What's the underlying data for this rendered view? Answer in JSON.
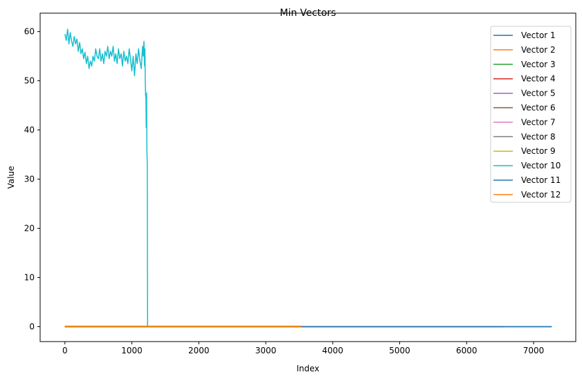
{
  "chart_data": {
    "type": "line",
    "title": "Min Vectors",
    "xlabel": "Index",
    "ylabel": "Value",
    "xlim": [
      -370,
      7630
    ],
    "ylim": [
      -3.03,
      63.75
    ],
    "xticks": [
      0,
      1000,
      2000,
      3000,
      4000,
      5000,
      6000,
      7000
    ],
    "yticks": [
      0,
      10,
      20,
      30,
      40,
      50,
      60
    ],
    "grid": false,
    "legend_position": "top-right",
    "series": [
      {
        "name": "Vector 1",
        "color": "#1f77b4",
        "x": [
          0,
          7270
        ],
        "y": [
          0.0,
          0.0
        ]
      },
      {
        "name": "Vector 2",
        "color": "#ff7f0e",
        "x": [
          0,
          3530
        ],
        "y": [
          0.1,
          0.1
        ]
      },
      {
        "name": "Vector 3",
        "color": "#2ca02c",
        "x": [
          0,
          3530
        ],
        "y": [
          0.05,
          0.05
        ]
      },
      {
        "name": "Vector 4",
        "color": "#d62728",
        "x": [
          0,
          3530
        ],
        "y": [
          0.05,
          0.05
        ]
      },
      {
        "name": "Vector 5",
        "color": "#9467bd",
        "x": [
          0,
          6550
        ],
        "y": [
          0.0,
          0.0
        ]
      },
      {
        "name": "Vector 6",
        "color": "#8c564b",
        "x": [
          0,
          6550
        ],
        "y": [
          0.0,
          0.0
        ]
      },
      {
        "name": "Vector 7",
        "color": "#e377c2",
        "x": [
          0,
          6550
        ],
        "y": [
          0.0,
          0.0
        ]
      },
      {
        "name": "Vector 8",
        "color": "#7f7f7f",
        "x": [
          0,
          6550
        ],
        "y": [
          0.0,
          0.0
        ]
      },
      {
        "name": "Vector 9",
        "color": "#bcbd22",
        "x": [
          0,
          3530
        ],
        "y": [
          0.05,
          0.05
        ]
      },
      {
        "name": "Vector 10",
        "color": "#17becf",
        "x": [
          0,
          20,
          40,
          60,
          80,
          100,
          120,
          140,
          160,
          180,
          200,
          220,
          240,
          260,
          280,
          300,
          320,
          340,
          360,
          380,
          400,
          420,
          440,
          460,
          480,
          500,
          520,
          540,
          560,
          580,
          600,
          620,
          640,
          660,
          680,
          700,
          720,
          740,
          760,
          780,
          800,
          820,
          840,
          860,
          880,
          900,
          920,
          940,
          960,
          980,
          1000,
          1020,
          1040,
          1060,
          1080,
          1100,
          1120,
          1140,
          1160,
          1170,
          1180,
          1190,
          1195,
          1200,
          1205,
          1210,
          1215,
          1220,
          1225,
          1230,
          1235
        ],
        "y": [
          59.5,
          58.2,
          60.5,
          57.5,
          59.8,
          58.0,
          57.0,
          59.0,
          57.5,
          58.5,
          56.0,
          57.8,
          55.5,
          56.5,
          54.5,
          55.8,
          53.5,
          55.0,
          52.5,
          54.0,
          53.0,
          55.0,
          54.0,
          56.5,
          55.0,
          54.5,
          56.5,
          54.0,
          55.5,
          53.5,
          56.0,
          55.0,
          57.0,
          54.5,
          56.0,
          55.0,
          57.0,
          54.0,
          55.5,
          53.5,
          56.5,
          54.5,
          55.5,
          53.0,
          56.0,
          54.0,
          55.0,
          53.5,
          56.5,
          54.5,
          52.0,
          55.0,
          51.0,
          55.5,
          53.5,
          56.5,
          54.0,
          52.5,
          57.0,
          55.0,
          58.0,
          53.0,
          56.5,
          50.0,
          47.0,
          46.5,
          40.5,
          47.5,
          36.0,
          33.0,
          0.0
        ]
      },
      {
        "name": "Vector 11",
        "color": "#1f77b4",
        "x": [
          0,
          7270
        ],
        "y": [
          0.0,
          0.0
        ]
      },
      {
        "name": "Vector 12",
        "color": "#ff7f0e",
        "x": [
          0,
          3530
        ],
        "y": [
          0.1,
          0.1
        ]
      }
    ]
  }
}
